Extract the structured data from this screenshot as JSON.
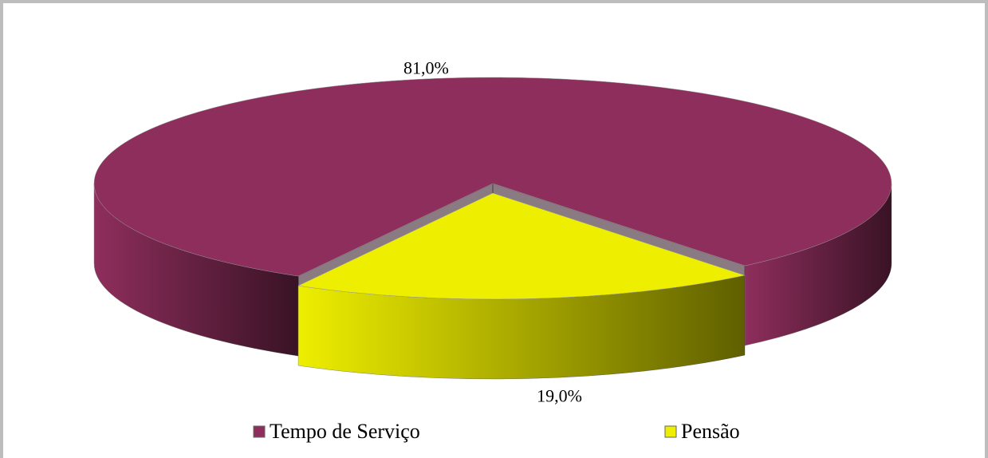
{
  "chart_data": {
    "type": "pie",
    "categories": [
      "Tempo de Serviço",
      "Pensão"
    ],
    "values": [
      81,
      19
    ],
    "value_labels": [
      "81,0%",
      "19,0%"
    ],
    "colors": [
      "#8E2E5C",
      "#EEEE00"
    ],
    "legend": "bottom"
  }
}
